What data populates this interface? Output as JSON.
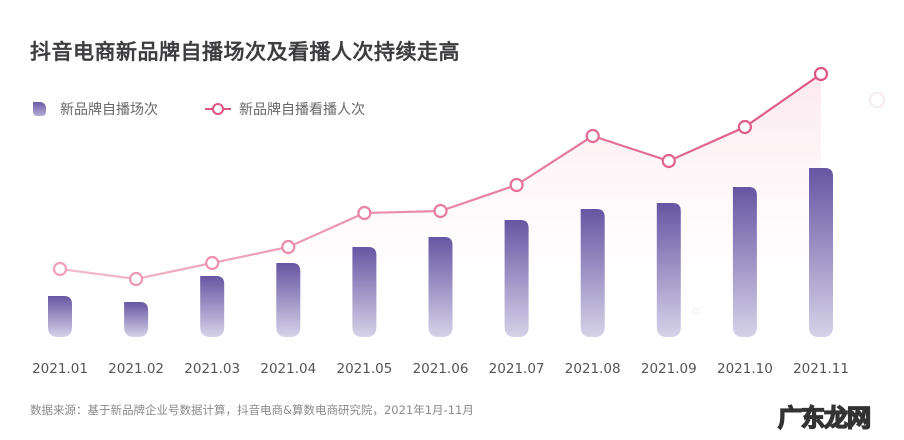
{
  "chart_data": {
    "type": "bar+line",
    "title": "抖音电商新品牌自播场次及看播人次持续走高",
    "categories": [
      "2021.01",
      "2021.02",
      "2021.03",
      "2021.04",
      "2021.05",
      "2021.06",
      "2021.07",
      "2021.08",
      "2021.09",
      "2021.10",
      "2021.11"
    ],
    "series": [
      {
        "name": "新品牌自播场次",
        "type": "bar",
        "values": [
          41,
          35,
          61,
          74,
          90,
          100,
          117,
          128,
          134,
          150,
          169
        ],
        "color": "#6a5aa6"
      },
      {
        "name": "新品牌自播看播人次",
        "type": "line",
        "values": [
          68,
          58,
          74,
          90,
          124,
          126,
          152,
          201,
          176,
          210,
          263
        ],
        "color": "#e0557f"
      }
    ],
    "ylim": [
      0,
      280
    ],
    "grid": false,
    "legend": "top-left",
    "note": "数据来源：基于新品牌企业号数据计算，抖音电商&算数电商研究院，2021年1月-11月"
  },
  "watermark": "广东龙网"
}
